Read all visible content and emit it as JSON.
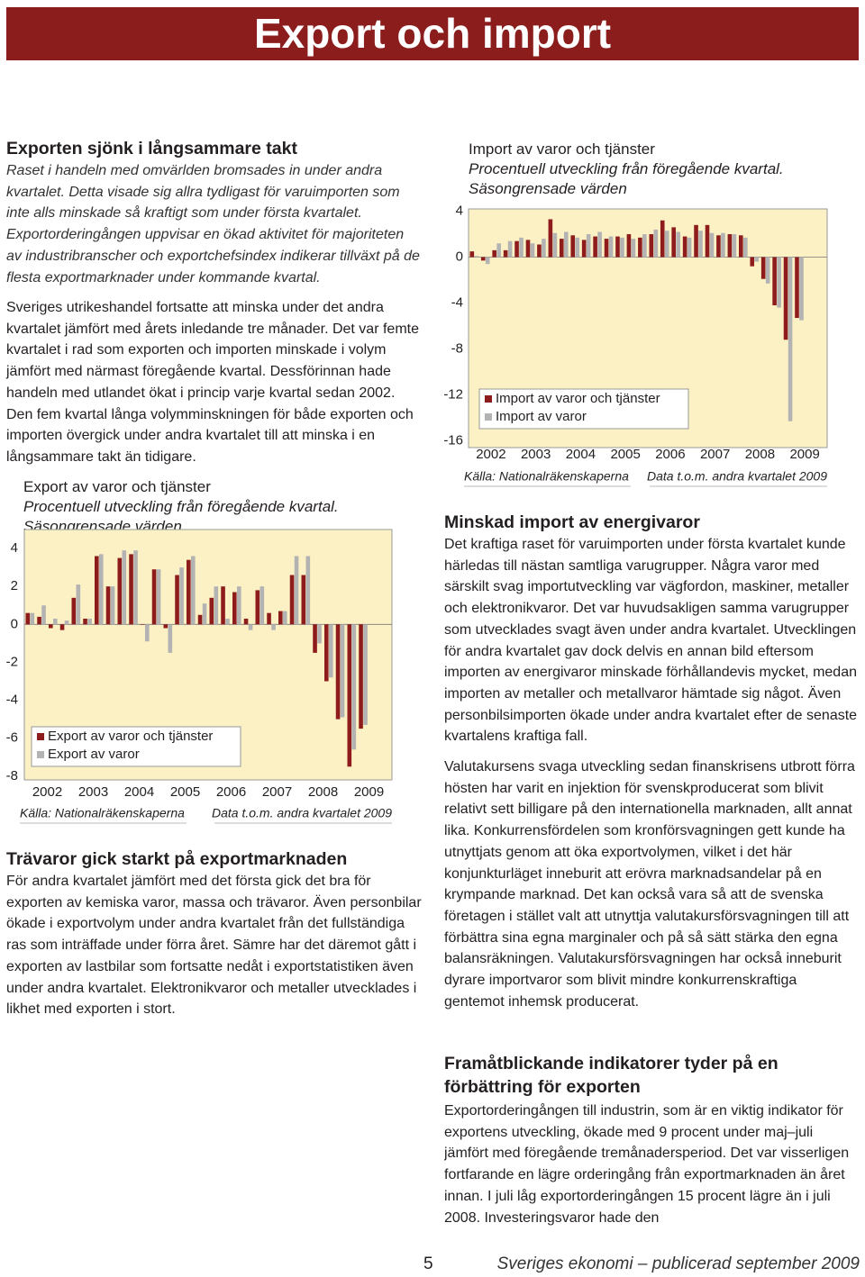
{
  "header": {
    "title": "Export och import"
  },
  "left": {
    "heading": "Exporten sjönk i långsammare takt",
    "lead": "Raset i handeln med omvärlden bromsades in under andra kvartalet. Detta visade sig allra tydligast för varuimporten som inte alls minskade så kraftigt som under första kvartalet. Exportorderingången uppvisar en ökad aktivitet för majoriteten av industribranscher och exportchefsindex indikerar tillväxt på de flesta exportmarknader under kommande kvartal.",
    "body": "Sveriges utrikeshandel fortsatte att minska under det andra kvartalet jämfört med årets inledande tre månader. Det var femte kvartalet i rad som exporten och importen minskade i volym jämfört med närmast föregående kvartal. Dessförinnan hade handeln med utlandet ökat i princip varje kvartal sedan 2002. Den fem kvartal långa volymminskningen för både exporten och importen övergick under andra kvartalet till att minska i en långsammare takt än tidigare.",
    "heading2": "Trävaror gick starkt på exportmarknaden",
    "body2": "För andra kvartalet jämfört med det första gick det bra för exporten av kemiska varor, massa och trävaror. Även personbilar ökade i exportvolym under andra kvartalet från det fullständiga ras som inträffade under förra året. Sämre har det däremot gått i exporten av lastbilar som fortsatte nedåt i exportstatistiken även under andra kvartalet. Elektronikvaror och metaller utvecklades i likhet med exporten i stort."
  },
  "right": {
    "heading": "Minskad import av energivaror",
    "body": "Det kraftiga raset för varuimporten under första kvartalet kunde härledas till nästan samtliga varugrupper. Några varor med särskilt svag importutveckling var vägfordon, maskiner, metaller och elektronikvaror. Det var huvudsakligen samma varugrupper som utvecklades svagt även under andra kvartalet. Utvecklingen för andra kvartalet gav dock delvis en annan bild eftersom importen av energivaror minskade förhållandevis mycket, medan importen av metaller och metallvaror hämtade sig något. Även personbilsimporten ökade under andra kvartalet efter de senaste kvartalens kraftiga fall.",
    "body2": "Valutakursens svaga utveckling sedan finanskrisens utbrott förra hösten har varit en injektion för svenskproducerat som blivit relativt sett billigare på den internationella marknaden, allt annat lika. Konkurrensfördelen som kronförsvagningen gett kunde ha utnyttjats genom att öka exportvolymen, vilket i det här konjunkturläget inneburit att erövra marknadsandelar på en krympande marknad. Det kan också vara så att de svenska företagen i stället valt att utnyttja valutakursförsvagningen till att förbättra sina egna marginaler och på så sätt stärka den egna balansräkningen. Valutakursförsvagningen har också inneburit dyrare importvaror som blivit mindre konkurrenskraftiga gentemot inhemsk producerat.",
    "heading2": "Framåtblickande indikatorer tyder på en förbättring för exporten",
    "body3": "Exportorderingången till industrin, som är en viktig indikator för exportens utveckling, ökade med 9 procent under maj–juli jämfört med föregående tremånadersperiod. Det var visserligen fortfarande en lägre orderingång från exportmarknaden än året innan. I juli låg exportorderingången 15 procent lägre än i juli 2008. Investeringsvaror hade den"
  },
  "footer": {
    "page": "5",
    "text": "Sveriges ekonomi – publicerad september 2009"
  },
  "chart_data": [
    {
      "type": "bar",
      "title": "Export av varor och tjänster",
      "subtitle": "Procentuell utveckling från föregående kvartal.",
      "note": "Säsongrensade värden",
      "categories": [
        "2002",
        null,
        null,
        null,
        "2003",
        null,
        null,
        null,
        "2004",
        null,
        null,
        null,
        "2005",
        null,
        null,
        null,
        "2006",
        null,
        null,
        null,
        "2007",
        null,
        null,
        null,
        "2008",
        null,
        null,
        null,
        "2009",
        null
      ],
      "series": [
        {
          "name": "Export av varor och tjänster",
          "color": "#8e1c1c",
          "values": [
            0.6,
            0.4,
            -0.2,
            -0.3,
            1.4,
            0.3,
            3.6,
            2.0,
            3.5,
            3.7,
            0.0,
            2.9,
            -0.2,
            2.6,
            3.4,
            0.5,
            1.4,
            2.0,
            1.7,
            0.3,
            1.8,
            0.6,
            0.7,
            2.6,
            2.6,
            -1.5,
            -3.0,
            -5.0,
            -7.5,
            -5.5
          ]
        },
        {
          "name": "Export av varor",
          "color": "#b3b3b3",
          "values": [
            0.6,
            1.0,
            0.3,
            0.2,
            2.1,
            0.3,
            3.7,
            2.0,
            3.9,
            3.9,
            -0.9,
            2.9,
            -1.5,
            3.0,
            3.6,
            1.1,
            2.0,
            0.3,
            2.0,
            -0.3,
            2.0,
            -0.3,
            0.7,
            3.6,
            3.6,
            -1.0,
            -2.8,
            -4.9,
            -6.6,
            -5.3
          ]
        }
      ],
      "ylim": [
        -8.2,
        5.0
      ],
      "yticks": [
        4,
        2,
        0,
        -2,
        -4,
        -6,
        -8
      ],
      "grid": false,
      "legend": "lower left",
      "source": "Källa: Nationalräkenskaperna",
      "data_note": "Data t.o.m. andra kvartalet 2009"
    },
    {
      "type": "bar",
      "title": "Import av varor och tjänster",
      "subtitle": "Procentuell utveckling från föregående kvartal.",
      "note": "Säsongrensade värden",
      "categories": [
        "2002",
        null,
        null,
        null,
        "2003",
        null,
        null,
        null,
        "2004",
        null,
        null,
        null,
        "2005",
        null,
        null,
        null,
        "2006",
        null,
        null,
        null,
        "2007",
        null,
        null,
        null,
        "2008",
        null,
        null,
        null,
        "2009",
        null
      ],
      "series": [
        {
          "name": "Import av varor och tjänster",
          "color": "#8e1c1c",
          "values": [
            0.5,
            -0.3,
            0.6,
            0.6,
            1.4,
            1.5,
            1.1,
            3.3,
            1.6,
            1.9,
            1.5,
            1.8,
            1.6,
            1.8,
            2.0,
            1.7,
            2.0,
            3.2,
            2.6,
            1.8,
            2.8,
            2.8,
            1.9,
            2.0,
            1.9,
            -0.8,
            -1.9,
            -4.2,
            -7.2,
            -5.3
          ]
        },
        {
          "name": "Import av varor",
          "color": "#b3b3b3",
          "values": [
            0.1,
            -0.6,
            1.2,
            1.4,
            1.7,
            1.2,
            1.6,
            2.1,
            2.2,
            1.7,
            2.0,
            2.2,
            1.8,
            1.7,
            1.6,
            2.0,
            2.4,
            2.3,
            2.2,
            1.7,
            2.3,
            2.1,
            2.1,
            2.0,
            1.7,
            -0.4,
            -2.3,
            -4.4,
            -14.3,
            -5.5
          ]
        }
      ],
      "ylim": [
        -16.6,
        4.2
      ],
      "yticks": [
        4,
        0,
        -4,
        -8,
        -12,
        -16
      ],
      "grid": false,
      "legend": "lower left",
      "source": "Källa: Nationalräkenskaperna",
      "data_note": "Data t.o.m. andra kvartalet 2009"
    }
  ]
}
